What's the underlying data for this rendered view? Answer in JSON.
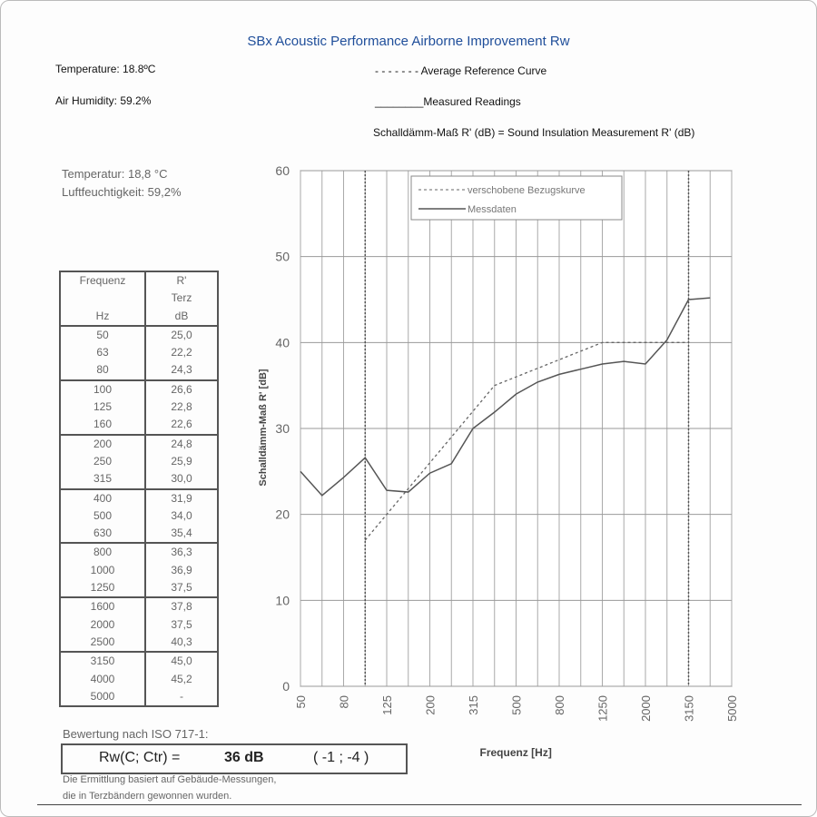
{
  "title": "SBx Acoustic Performance  Airborne Improvement Rw",
  "header": {
    "temperature": "Temperature: 18.8ºC",
    "humidity": "Air Humidity: 59.2%",
    "legend_avg": "- - - - - - - Average Reference Curve",
    "legend_meas": "________Measured Readings",
    "note": "Schalldämm-Maß R' (dB) = Sound Insulation Measurement R' (dB)"
  },
  "scan": {
    "temperatur": "Temperatur: 18,8 °C",
    "luft": "Luftfeuchtigkeit: 59,2%",
    "table_headers": {
      "freq": "Frequenz",
      "hz": "Hz",
      "r": "R'",
      "terz": "Terz",
      "db": "dB"
    },
    "rows": [
      [
        "50",
        "25,0"
      ],
      [
        "63",
        "22,2"
      ],
      [
        "80",
        "24,3"
      ],
      [
        "100",
        "26,6"
      ],
      [
        "125",
        "22,8"
      ],
      [
        "160",
        "22,6"
      ],
      [
        "200",
        "24,8"
      ],
      [
        "250",
        "25,9"
      ],
      [
        "315",
        "30,0"
      ],
      [
        "400",
        "31,9"
      ],
      [
        "500",
        "34,0"
      ],
      [
        "630",
        "35,4"
      ],
      [
        "800",
        "36,3"
      ],
      [
        "1000",
        "36,9"
      ],
      [
        "1250",
        "37,5"
      ],
      [
        "1600",
        "37,8"
      ],
      [
        "2000",
        "37,5"
      ],
      [
        "2500",
        "40,3"
      ],
      [
        "3150",
        "45,0"
      ],
      [
        "4000",
        "45,2"
      ],
      [
        "5000",
        "-"
      ]
    ],
    "bewertung": "Bewertung nach ISO 717-1:",
    "rw_label": "Rw(C; Ctr) =",
    "rw_value": "36 dB",
    "rw_terms": "(   -1 ; -4  )",
    "footnote1": "Die Ermittlung basiert auf Gebäude-Messungen,",
    "footnote2": "die in Terzbändern gewonnen wurden."
  },
  "chart_data": {
    "type": "line",
    "xlabel": "Frequenz [Hz]",
    "ylabel": "Schalldämm-Maß R' [dB]",
    "ylim": [
      0,
      60
    ],
    "yticks": [
      0,
      10,
      20,
      30,
      40,
      50,
      60
    ],
    "bands": [
      "50",
      "63",
      "80",
      "100",
      "125",
      "160",
      "200",
      "250",
      "315",
      "400",
      "500",
      "630",
      "800",
      "1000",
      "1250",
      "1600",
      "2000",
      "2500",
      "3150",
      "4000",
      "5000"
    ],
    "xtick_labels": [
      "50",
      "80",
      "125",
      "200",
      "315",
      "500",
      "800",
      "1250",
      "2000",
      "3150",
      "5000"
    ],
    "legend": [
      "verschobene Bezugskurve",
      "Messdaten"
    ],
    "legend_position": "top-right",
    "series": [
      {
        "name": "Messdaten",
        "bands": [
          "50",
          "63",
          "80",
          "100",
          "125",
          "160",
          "200",
          "250",
          "315",
          "400",
          "500",
          "630",
          "800",
          "1000",
          "1250",
          "1600",
          "2000",
          "2500",
          "3150",
          "4000"
        ],
        "values": [
          25.0,
          22.2,
          24.3,
          26.6,
          22.8,
          22.6,
          24.8,
          25.9,
          30.0,
          31.9,
          34.0,
          35.4,
          36.3,
          36.9,
          37.5,
          37.8,
          37.5,
          40.3,
          45.0,
          45.2
        ]
      },
      {
        "name": "verschobene Bezugskurve",
        "bands": [
          "100",
          "125",
          "160",
          "200",
          "250",
          "315",
          "400",
          "500",
          "630",
          "800",
          "1000",
          "1250",
          "1600",
          "2000",
          "2500",
          "3150"
        ],
        "values": [
          17,
          20,
          23,
          26,
          29,
          32,
          35,
          36,
          37,
          38,
          39,
          40,
          40,
          40,
          40,
          40
        ]
      }
    ]
  }
}
